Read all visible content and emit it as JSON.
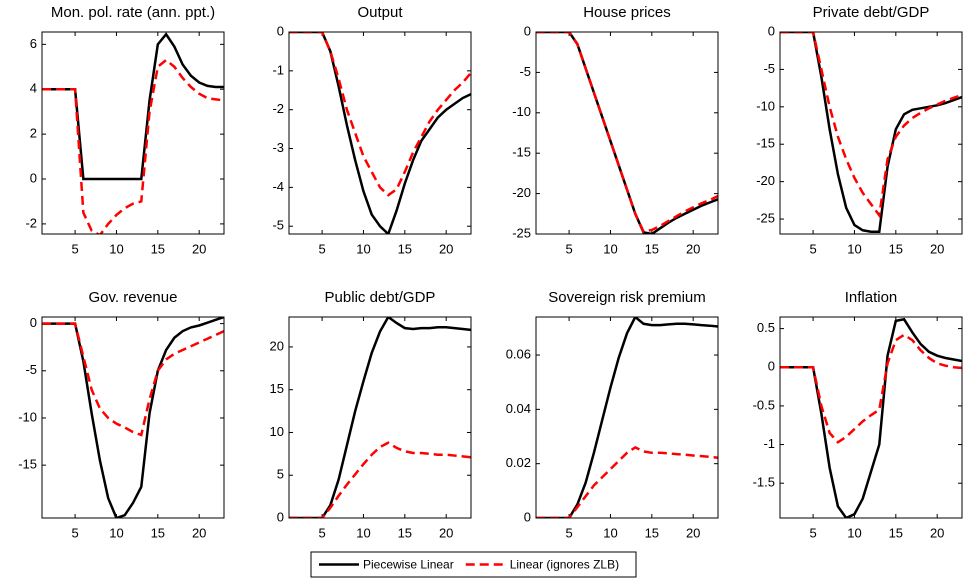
{
  "x": [
    1,
    2,
    3,
    4,
    5,
    6,
    7,
    8,
    9,
    10,
    11,
    12,
    13,
    14,
    15,
    16,
    17,
    18,
    19,
    20,
    21,
    22,
    23
  ],
  "xlim": [
    1,
    23
  ],
  "xticks": [
    5,
    10,
    15,
    20
  ],
  "legend": [
    {
      "name": "Piecewise Linear",
      "color": "#000000",
      "dashed": false
    },
    {
      "name": "Linear (ignores ZLB)",
      "color": "#ff0000",
      "dashed": true
    }
  ],
  "chart_data": [
    {
      "type": "line",
      "title": "Mon. pol. rate (ann. ppt.)",
      "ylim": [
        -2.45,
        6.55
      ],
      "yticks": [
        -2,
        0,
        2,
        4,
        6
      ],
      "series": [
        {
          "values": [
            4,
            4,
            4,
            4,
            4,
            0,
            0,
            0,
            0,
            0,
            0,
            0,
            0,
            3.5,
            6.0,
            6.45,
            5.9,
            5.1,
            4.6,
            4.3,
            4.15,
            4.1,
            4.1
          ]
        },
        {
          "values": [
            4,
            4,
            4,
            4,
            4,
            -1.5,
            -2.3,
            -2.5,
            -2.0,
            -1.6,
            -1.3,
            -1.1,
            -1.0,
            3.0,
            5.0,
            5.3,
            5.0,
            4.5,
            4.1,
            3.8,
            3.6,
            3.55,
            3.5
          ]
        }
      ]
    },
    {
      "type": "line",
      "title": "Output",
      "ylim": [
        -5.2,
        0
      ],
      "yticks": [
        -5,
        -4,
        -3,
        -2,
        -1,
        0
      ],
      "series": [
        {
          "values": [
            0,
            0,
            0,
            0,
            0,
            -0.5,
            -1.4,
            -2.4,
            -3.3,
            -4.1,
            -4.7,
            -5.0,
            -5.2,
            -4.6,
            -3.9,
            -3.3,
            -2.8,
            -2.5,
            -2.2,
            -2.0,
            -1.85,
            -1.7,
            -1.6
          ]
        },
        {
          "values": [
            0,
            0,
            0,
            0,
            0,
            -0.5,
            -1.2,
            -2.0,
            -2.6,
            -3.2,
            -3.6,
            -4.0,
            -4.2,
            -4.05,
            -3.6,
            -3.1,
            -2.7,
            -2.3,
            -2.0,
            -1.75,
            -1.5,
            -1.3,
            -1.05
          ]
        }
      ]
    },
    {
      "type": "line",
      "title": "House prices",
      "ylim": [
        -25,
        0
      ],
      "yticks": [
        -25,
        -20,
        -15,
        -10,
        -5,
        0
      ],
      "series": [
        {
          "values": [
            0,
            0,
            0,
            0,
            0,
            -1.5,
            -4.5,
            -7.5,
            -10.5,
            -13.5,
            -16.5,
            -19.5,
            -22.5,
            -24.8,
            -25.0,
            -24.3,
            -23.6,
            -23.0,
            -22.5,
            -22.0,
            -21.5,
            -21.1,
            -20.7
          ]
        },
        {
          "values": [
            0,
            0,
            0,
            0,
            0,
            -1.5,
            -4.5,
            -7.5,
            -10.5,
            -13.5,
            -16.5,
            -19.5,
            -22.5,
            -24.7,
            -24.5,
            -24.0,
            -23.4,
            -22.8,
            -22.2,
            -21.7,
            -21.2,
            -20.8,
            -20.3
          ]
        }
      ]
    },
    {
      "type": "line",
      "title": "Private debt/GDP",
      "ylim": [
        -27,
        0
      ],
      "yticks": [
        -25,
        -20,
        -15,
        -10,
        -5,
        0
      ],
      "series": [
        {
          "values": [
            0,
            0,
            0,
            0,
            0,
            -6,
            -13,
            -19,
            -23.5,
            -25.8,
            -26.5,
            -26.7,
            -26.7,
            -18,
            -13,
            -11,
            -10.4,
            -10.2,
            -10.0,
            -9.8,
            -9.5,
            -9.1,
            -8.7
          ]
        },
        {
          "values": [
            0,
            0,
            0,
            0,
            0,
            -5,
            -10,
            -14,
            -17,
            -19.5,
            -21.5,
            -23,
            -24.5,
            -17,
            -14,
            -12.5,
            -11.5,
            -10.8,
            -10.2,
            -9.7,
            -9.2,
            -8.8,
            -8.4
          ]
        }
      ]
    },
    {
      "type": "line",
      "title": "Gov. revenue",
      "ylim": [
        -20.6,
        0.7
      ],
      "yticks": [
        -15,
        -10,
        -5,
        0
      ],
      "series": [
        {
          "values": [
            0,
            0,
            0,
            0,
            0,
            -4,
            -9.5,
            -14.5,
            -18.5,
            -20.6,
            -20.3,
            -19,
            -17.3,
            -9.5,
            -5,
            -2.8,
            -1.5,
            -0.8,
            -0.4,
            -0.2,
            0.1,
            0.4,
            0.7
          ]
        },
        {
          "values": [
            0,
            0,
            0,
            0,
            0,
            -3.5,
            -7,
            -9,
            -10,
            -10.6,
            -11,
            -11.5,
            -11.8,
            -8,
            -5,
            -3.8,
            -3.2,
            -2.8,
            -2.4,
            -2.0,
            -1.6,
            -1.2,
            -0.8
          ]
        }
      ]
    },
    {
      "type": "line",
      "title": "Public debt/GDP",
      "ylim": [
        0,
        23.5
      ],
      "yticks": [
        0,
        5,
        10,
        15,
        20
      ],
      "series": [
        {
          "values": [
            0,
            0,
            0,
            0,
            0,
            1.5,
            4.5,
            8.5,
            12.5,
            16,
            19.3,
            21.8,
            23.5,
            22.8,
            22.2,
            22.1,
            22.2,
            22.2,
            22.3,
            22.3,
            22.2,
            22.1,
            22.0
          ]
        },
        {
          "values": [
            0,
            0,
            0,
            0,
            0,
            1.2,
            2.6,
            3.9,
            5.1,
            6.3,
            7.4,
            8.3,
            8.8,
            8.2,
            7.8,
            7.6,
            7.6,
            7.5,
            7.4,
            7.4,
            7.3,
            7.2,
            7.1
          ]
        }
      ]
    },
    {
      "type": "line",
      "title": "Sovereign risk premium",
      "ylim": [
        0,
        0.074
      ],
      "yticks": [
        0,
        0.02,
        0.04,
        0.06
      ],
      "series": [
        {
          "values": [
            0,
            0,
            0,
            0,
            0,
            0.005,
            0.013,
            0.024,
            0.036,
            0.048,
            0.059,
            0.068,
            0.074,
            0.0715,
            0.071,
            0.071,
            0.0713,
            0.0715,
            0.0715,
            0.0713,
            0.071,
            0.0708,
            0.0705
          ]
        },
        {
          "values": [
            0,
            0,
            0,
            0,
            0,
            0.004,
            0.008,
            0.012,
            0.015,
            0.018,
            0.021,
            0.024,
            0.026,
            0.0245,
            0.024,
            0.024,
            0.0238,
            0.0235,
            0.0233,
            0.023,
            0.0228,
            0.0225,
            0.0222
          ]
        }
      ]
    },
    {
      "type": "line",
      "title": "Inflation",
      "ylim": [
        -1.95,
        0.65
      ],
      "yticks": [
        -1.5,
        -1,
        -0.5,
        0,
        0.5
      ],
      "series": [
        {
          "values": [
            0,
            0,
            0,
            0,
            0,
            -0.6,
            -1.3,
            -1.8,
            -1.95,
            -1.9,
            -1.7,
            -1.35,
            -1.0,
            0.15,
            0.6,
            0.62,
            0.45,
            0.3,
            0.2,
            0.15,
            0.12,
            0.1,
            0.08
          ]
        },
        {
          "values": [
            0,
            0,
            0,
            0,
            0,
            -0.5,
            -0.85,
            -0.97,
            -0.9,
            -0.8,
            -0.7,
            -0.62,
            -0.55,
            0.05,
            0.35,
            0.42,
            0.35,
            0.22,
            0.12,
            0.05,
            0.02,
            0.0,
            -0.01
          ]
        }
      ]
    }
  ]
}
